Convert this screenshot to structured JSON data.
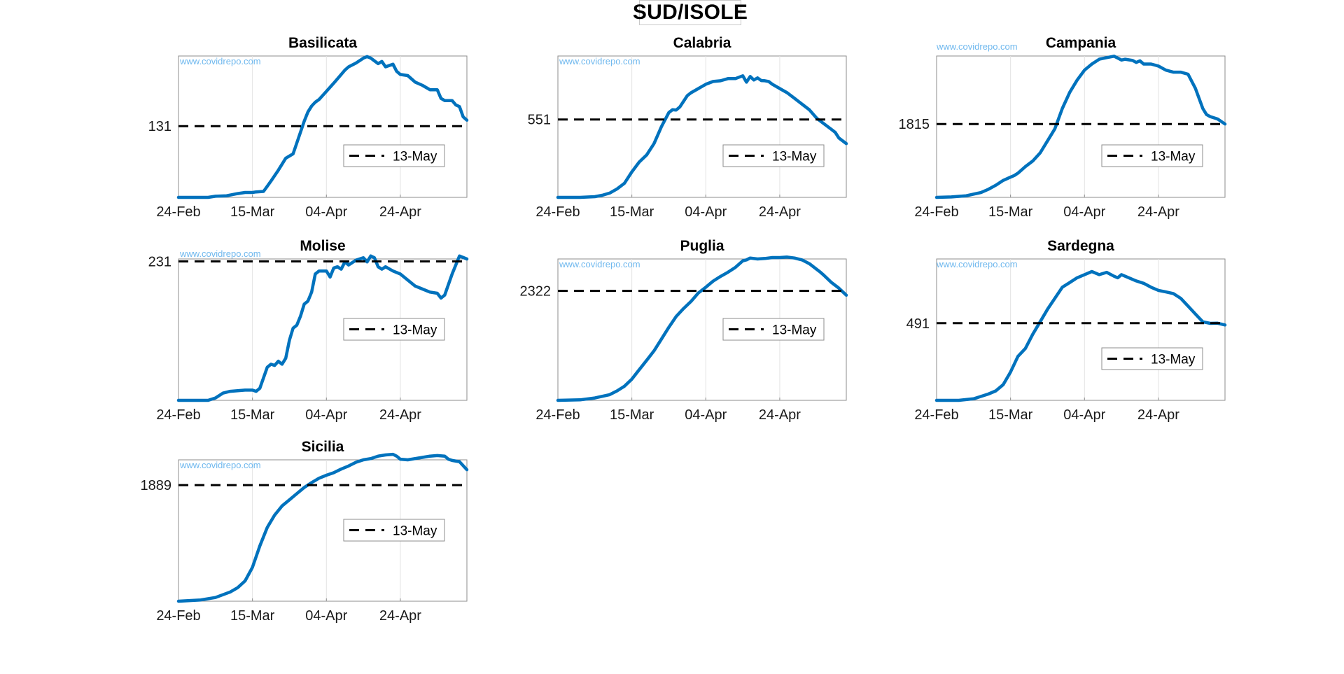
{
  "figure": {
    "title": "SUD/ISOLE"
  },
  "chart_data": [
    {
      "type": "line",
      "title": "Basilicata",
      "watermark": "www.covidrepo.com",
      "xticks": [
        "24-Feb",
        "15-Mar",
        "04-Apr",
        "24-Apr"
      ],
      "yticks": [
        131
      ],
      "ylim": [
        0,
        260
      ],
      "reference_value": 131,
      "legend": [
        "13-May"
      ],
      "legend_position": "lower-right",
      "grid": "x-only",
      "line_color": "#0072BD",
      "series": [
        {
          "x": [
            0,
            4,
            8,
            10,
            13,
            16,
            18,
            20,
            21,
            23,
            25,
            27,
            29,
            31,
            32,
            34,
            35,
            36,
            37,
            38,
            40,
            42,
            44,
            45,
            46,
            48,
            50,
            51,
            52,
            54,
            55,
            56,
            58,
            59,
            60,
            62,
            64,
            66,
            68,
            70,
            71,
            72,
            74,
            75,
            76,
            77,
            78
          ],
          "y": [
            0,
            0,
            0,
            2,
            3,
            7,
            9,
            9,
            10,
            11,
            30,
            50,
            72,
            80,
            100,
            140,
            157,
            168,
            175,
            180,
            195,
            210,
            226,
            234,
            240,
            247,
            256,
            259,
            256,
            246,
            250,
            240,
            245,
            232,
            226,
            224,
            212,
            206,
            198,
            198,
            182,
            178,
            178,
            170,
            167,
            148,
            142
          ]
        }
      ]
    },
    {
      "type": "line",
      "title": "Calabria",
      "watermark": "www.covidrepo.com",
      "xticks": [
        "24-Feb",
        "15-Mar",
        "04-Apr",
        "24-Apr"
      ],
      "yticks": [
        551
      ],
      "ylim": [
        0,
        1000
      ],
      "reference_value": 551,
      "legend": [
        "13-May"
      ],
      "legend_position": "lower-right",
      "grid": "x-only",
      "line_color": "#0072BD",
      "series": [
        {
          "x": [
            0,
            6,
            10,
            12,
            14,
            16,
            18,
            20,
            22,
            24,
            26,
            28,
            30,
            31,
            32,
            33,
            34,
            35,
            36,
            38,
            40,
            42,
            44,
            46,
            48,
            50,
            51,
            52,
            53,
            54,
            55,
            56,
            57,
            58,
            60,
            62,
            64,
            66,
            68,
            70,
            72,
            74,
            75,
            76,
            77,
            78
          ],
          "y": [
            0,
            0,
            5,
            15,
            30,
            60,
            100,
            180,
            250,
            300,
            380,
            500,
            600,
            620,
            618,
            640,
            680,
            720,
            740,
            770,
            800,
            820,
            825,
            840,
            840,
            860,
            815,
            855,
            830,
            845,
            826,
            825,
            820,
            800,
            770,
            740,
            700,
            660,
            620,
            560,
            520,
            480,
            460,
            420,
            400,
            380
          ]
        }
      ]
    },
    {
      "type": "line",
      "title": "Campania",
      "watermark": "www.covidrepo.com",
      "xticks": [
        "24-Feb",
        "15-Mar",
        "04-Apr",
        "24-Apr"
      ],
      "yticks": [
        1815
      ],
      "ylim": [
        0,
        3500
      ],
      "reference_value": 1815,
      "legend": [
        "13-May"
      ],
      "legend_position": "lower-right",
      "grid": "x-only",
      "line_color": "#0072BD",
      "series": [
        {
          "x": [
            0,
            4,
            8,
            12,
            14,
            16,
            18,
            20,
            21,
            22,
            24,
            26,
            28,
            30,
            32,
            34,
            36,
            38,
            40,
            42,
            44,
            46,
            48,
            50,
            51,
            52,
            53,
            54,
            55,
            56,
            58,
            60,
            62,
            64,
            66,
            68,
            70,
            72,
            73,
            74,
            76,
            78
          ],
          "y": [
            0,
            10,
            40,
            120,
            200,
            300,
            420,
            500,
            540,
            600,
            760,
            900,
            1100,
            1400,
            1700,
            2200,
            2600,
            2900,
            3150,
            3300,
            3420,
            3460,
            3495,
            3400,
            3420,
            3405,
            3390,
            3340,
            3380,
            3300,
            3300,
            3250,
            3150,
            3100,
            3100,
            3050,
            2700,
            2200,
            2050,
            2000,
            1940,
            1815
          ]
        }
      ]
    },
    {
      "type": "line",
      "title": "Molise",
      "watermark": "www.covidrepo.com",
      "xticks": [
        "24-Feb",
        "15-Mar",
        "04-Apr",
        "24-Apr"
      ],
      "yticks": [
        231
      ],
      "ylim": [
        0,
        235
      ],
      "reference_value": 231,
      "legend": [
        "13-May"
      ],
      "legend_position": "lower-right",
      "grid": "x-only",
      "line_color": "#0072BD",
      "series": [
        {
          "x": [
            0,
            4,
            7,
            8,
            10,
            12,
            14,
            16,
            18,
            20,
            21,
            22,
            24,
            25,
            26,
            27,
            28,
            29,
            30,
            31,
            32,
            33,
            34,
            35,
            36,
            37,
            38,
            40,
            41,
            42,
            43,
            44,
            45,
            46,
            48,
            50,
            51,
            52,
            53,
            54,
            55,
            56,
            58,
            60,
            62,
            64,
            66,
            68,
            70,
            71,
            72,
            74,
            76,
            78
          ],
          "y": [
            0,
            0,
            0,
            0,
            4,
            12,
            15,
            16,
            17,
            17,
            15,
            20,
            55,
            60,
            58,
            65,
            60,
            70,
            100,
            120,
            125,
            140,
            160,
            165,
            180,
            210,
            215,
            215,
            205,
            220,
            222,
            218,
            230,
            225,
            233,
            237,
            230,
            240,
            237,
            222,
            218,
            222,
            215,
            210,
            200,
            190,
            185,
            180,
            178,
            170,
            175,
            210,
            240,
            235
          ]
        }
      ]
    },
    {
      "type": "line",
      "title": "Puglia",
      "watermark": "www.covidrepo.com",
      "xticks": [
        "24-Feb",
        "15-Mar",
        "04-Apr",
        "24-Apr"
      ],
      "yticks": [
        2322
      ],
      "ylim": [
        0,
        3000
      ],
      "reference_value": 2322,
      "legend": [
        "13-May"
      ],
      "legend_position": "lower-right",
      "grid": "x-only",
      "line_color": "#0072BD",
      "series": [
        {
          "x": [
            0,
            6,
            10,
            14,
            16,
            18,
            20,
            22,
            24,
            26,
            28,
            30,
            32,
            34,
            36,
            38,
            40,
            42,
            44,
            46,
            48,
            50,
            51,
            52,
            54,
            56,
            58,
            60,
            62,
            64,
            66,
            68,
            70,
            71,
            72,
            74,
            76,
            78
          ],
          "y": [
            0,
            10,
            50,
            120,
            200,
            300,
            450,
            650,
            850,
            1050,
            1300,
            1550,
            1780,
            1950,
            2100,
            2280,
            2400,
            2530,
            2630,
            2720,
            2820,
            2960,
            2980,
            3020,
            3000,
            3010,
            3030,
            3030,
            3040,
            3020,
            2980,
            2900,
            2780,
            2720,
            2650,
            2500,
            2380,
            2230
          ]
        }
      ]
    },
    {
      "type": "line",
      "title": "Sardegna",
      "watermark": "www.covidrepo.com",
      "xticks": [
        "24-Feb",
        "15-Mar",
        "04-Apr",
        "24-Apr"
      ],
      "yticks": [
        491
      ],
      "ylim": [
        0,
        900
      ],
      "reference_value": 491,
      "legend": [
        "13-May"
      ],
      "legend_position": "lower-right",
      "grid": "x-only",
      "line_color": "#0072BD",
      "series": [
        {
          "x": [
            0,
            6,
            10,
            12,
            14,
            16,
            18,
            20,
            22,
            24,
            26,
            28,
            30,
            32,
            34,
            36,
            38,
            40,
            42,
            44,
            46,
            48,
            49,
            50,
            52,
            54,
            56,
            58,
            60,
            62,
            64,
            66,
            68,
            70,
            72,
            74,
            76,
            78
          ],
          "y": [
            0,
            0,
            10,
            25,
            40,
            60,
            100,
            180,
            280,
            330,
            420,
            500,
            580,
            650,
            720,
            750,
            780,
            800,
            820,
            800,
            815,
            790,
            780,
            800,
            780,
            760,
            745,
            720,
            700,
            690,
            680,
            650,
            600,
            550,
            500,
            490,
            491,
            480
          ]
        }
      ]
    },
    {
      "type": "line",
      "title": "Sicilia",
      "watermark": "www.covidrepo.com",
      "xticks": [
        "24-Feb",
        "15-Mar",
        "04-Apr",
        "24-Apr"
      ],
      "yticks": [
        1889
      ],
      "ylim": [
        0,
        2300
      ],
      "reference_value": 1889,
      "legend": [
        "13-May"
      ],
      "legend_position": "lower-right",
      "grid": "x-only",
      "line_color": "#0072BD",
      "series": [
        {
          "x": [
            0,
            6,
            10,
            14,
            16,
            18,
            20,
            22,
            24,
            26,
            28,
            30,
            32,
            34,
            36,
            38,
            40,
            42,
            44,
            46,
            48,
            50,
            52,
            54,
            56,
            58,
            59,
            60,
            62,
            64,
            66,
            68,
            70,
            72,
            73,
            74,
            76,
            78
          ],
          "y": [
            0,
            20,
            60,
            150,
            220,
            330,
            550,
            900,
            1200,
            1400,
            1550,
            1650,
            1750,
            1850,
            1930,
            2000,
            2050,
            2090,
            2150,
            2200,
            2260,
            2300,
            2320,
            2360,
            2380,
            2390,
            2360,
            2310,
            2300,
            2320,
            2340,
            2360,
            2370,
            2360,
            2310,
            2290,
            2270,
            2140
          ]
        }
      ]
    }
  ]
}
